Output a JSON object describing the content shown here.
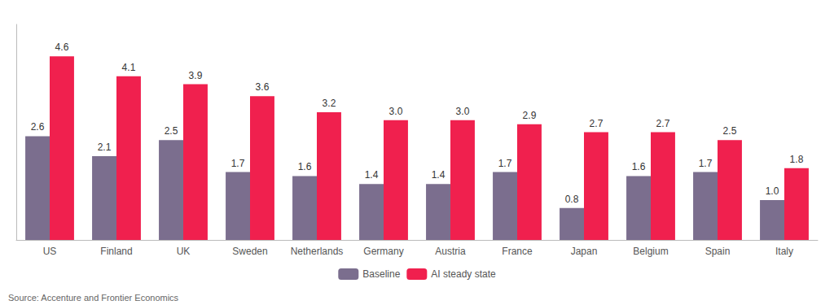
{
  "chart_data": {
    "type": "bar",
    "categories": [
      "US",
      "Finland",
      "UK",
      "Sweden",
      "Netherlands",
      "Germany",
      "Austria",
      "France",
      "Japan",
      "Belgium",
      "Spain",
      "Italy"
    ],
    "series": [
      {
        "name": "Baseline",
        "color": "#7B6E8E",
        "values": [
          2.6,
          2.1,
          2.5,
          1.7,
          1.6,
          1.4,
          1.4,
          1.7,
          0.8,
          1.6,
          1.7,
          1.0
        ],
        "value_labels": [
          "2.6",
          "2.1",
          "2.5",
          "1.7",
          "1.6",
          "1.4",
          "1.4",
          "1.7",
          "0.8",
          "1.6",
          "1.7",
          "1.0"
        ]
      },
      {
        "name": "AI steady state",
        "color": "#F0204E",
        "values": [
          4.6,
          4.1,
          3.9,
          3.6,
          3.2,
          3.0,
          3.0,
          2.9,
          2.7,
          2.7,
          2.5,
          1.8
        ],
        "value_labels": [
          "4.6",
          "4.1",
          "3.9",
          "3.6",
          "3.2",
          "3.0",
          "3.0",
          "2.9",
          "2.7",
          "2.7",
          "2.5",
          "1.8"
        ]
      }
    ],
    "ylim": [
      0,
      5.4
    ],
    "grid": false,
    "legend": "bottom",
    "data_labels": true,
    "tick_labels": "x",
    "annotations": [
      "Source: Accenture and Frontier Economics"
    ]
  }
}
